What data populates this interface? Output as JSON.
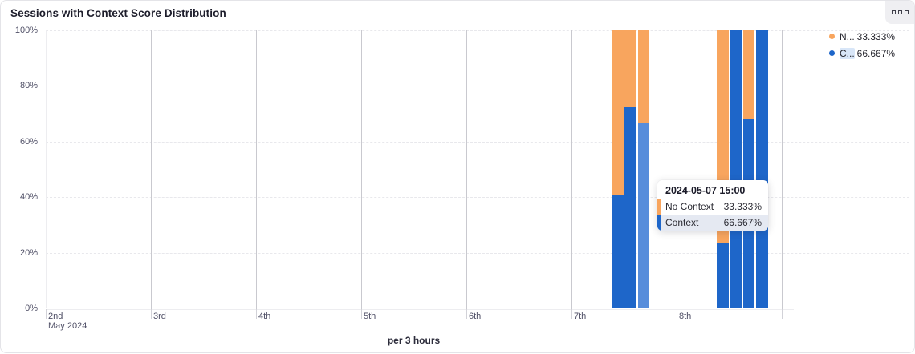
{
  "panel": {
    "title": "Sessions with Context Score Distribution",
    "menu_icon": "grid-squares-icon"
  },
  "colors": {
    "no_context": "#F8A55E",
    "context": "#1E66C9",
    "context_highlight": "#578DDB"
  },
  "legend": [
    {
      "name": "N...",
      "value": "33.333%",
      "color": "#F8A55E",
      "highlighted": false
    },
    {
      "name": "C...",
      "value": "66.667%",
      "color": "#1E66C9",
      "highlighted": true
    }
  ],
  "tooltip": {
    "title": "2024-05-07 15:00",
    "rows": [
      {
        "label": "No Context",
        "value": "33.333%",
        "color": "#F8A55E",
        "highlighted": false
      },
      {
        "label": "Context",
        "value": "66.667%",
        "color": "#1E66C9",
        "highlighted": true
      }
    ]
  },
  "chart_data": {
    "type": "bar",
    "stacked": true,
    "title": "Sessions with Context Score Distribution",
    "xlabel": "per 3 hours",
    "ylabel": "",
    "ylim": [
      0,
      100
    ],
    "grid": true,
    "legend_position": "top-right",
    "x_axis": {
      "month_label": "May 2024",
      "day_ticks": [
        "2nd",
        "3rd",
        "4th",
        "5th",
        "6th",
        "7th",
        "8th"
      ]
    },
    "y_ticks": [
      "0%",
      "20%",
      "40%",
      "60%",
      "80%",
      "100%"
    ],
    "series_names": [
      "No Context",
      "Context"
    ],
    "bars": [
      {
        "time": "2024-05-07 09:00",
        "context_pct": 41,
        "no_context_pct": 59,
        "highlighted": false
      },
      {
        "time": "2024-05-07 12:00",
        "context_pct": 72.7,
        "no_context_pct": 27.3,
        "highlighted": false
      },
      {
        "time": "2024-05-07 15:00",
        "context_pct": 66.667,
        "no_context_pct": 33.333,
        "highlighted": true
      },
      {
        "time": "2024-05-08 09:00",
        "context_pct": 23.3,
        "no_context_pct": 76.7,
        "highlighted": false
      },
      {
        "time": "2024-05-08 12:00",
        "context_pct": 100,
        "no_context_pct": 0,
        "highlighted": false
      },
      {
        "time": "2024-05-08 15:00",
        "context_pct": 68,
        "no_context_pct": 32,
        "highlighted": false
      },
      {
        "time": "2024-05-08 18:00",
        "context_pct": 100,
        "no_context_pct": 0,
        "highlighted": false
      }
    ]
  }
}
